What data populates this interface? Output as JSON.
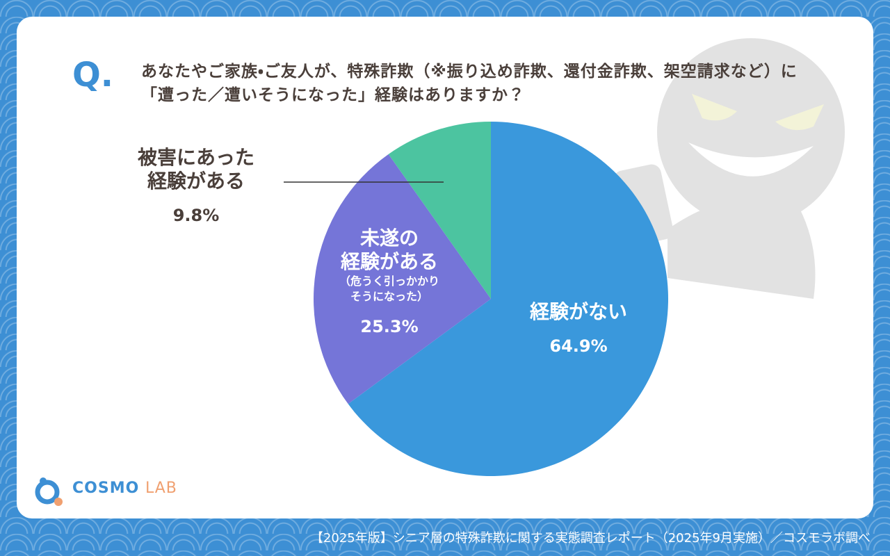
{
  "q_mark": "Q.",
  "question": "あなたやご家族・ご友人が、特殊詐欺（※振り込め詐欺、還付金詐欺、架空請求など）に「遭った／遭いそうになった」経験はありますか？",
  "chart_data": {
    "type": "pie",
    "categories": [
      "経験がない",
      "未遂の\n経験がある",
      "被害にあった\n経験がある"
    ],
    "values": [
      64.9,
      25.3,
      9.8
    ],
    "value_labels": [
      "64.9%",
      "25.3%",
      "9.8%"
    ],
    "colors": [
      "#3a98dc",
      "#7575d8",
      "#4cc4a0"
    ],
    "annotations": [
      {
        "category": 1,
        "text": "（危うく引っかかり\nそうになった）"
      }
    ]
  },
  "logo": {
    "main": "COSMO",
    "sub": "LAB"
  },
  "footer": "【2025年版】シニア層の特殊詐欺に関する実態調査レポート（2025年9月実施）／コスモラボ調べ"
}
